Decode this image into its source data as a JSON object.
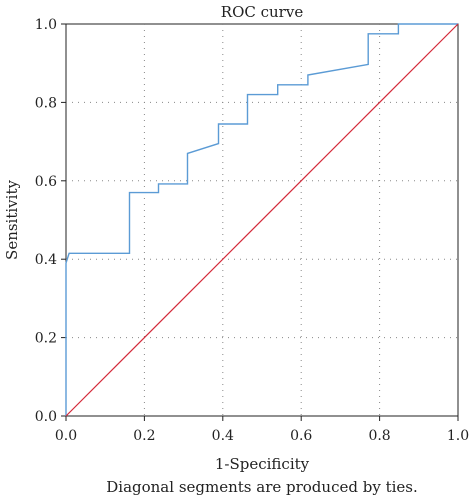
{
  "chart_data": {
    "type": "line",
    "title": "ROC curve",
    "xlabel": "1-Specificity",
    "ylabel": "Sensitivity",
    "footnote": "Diagonal segments are produced by ties.",
    "xlim": [
      0,
      1
    ],
    "ylim": [
      0,
      1
    ],
    "xticks": [
      "0.0",
      "0.2",
      "0.4",
      "0.6",
      "0.8",
      "1.0"
    ],
    "yticks": [
      "0.0",
      "0.2",
      "0.4",
      "0.6",
      "0.8",
      "1.0"
    ],
    "grid": true,
    "series": [
      {
        "color": "#5b9bd5",
        "x": [
          0.0,
          0.0,
          0.008,
          0.008,
          0.162,
          0.162,
          0.236,
          0.236,
          0.31,
          0.31,
          0.389,
          0.389,
          0.463,
          0.463,
          0.54,
          0.54,
          0.617,
          0.617,
          0.771,
          0.771,
          0.848,
          0.848,
          1.0
        ],
        "y": [
          0.0,
          0.39,
          0.415,
          0.415,
          0.415,
          0.57,
          0.57,
          0.592,
          0.592,
          0.67,
          0.695,
          0.745,
          0.745,
          0.82,
          0.82,
          0.845,
          0.845,
          0.87,
          0.897,
          0.975,
          0.975,
          1.0,
          1.0
        ]
      },
      {
        "color": "#d42a3a",
        "x": [
          0,
          1
        ],
        "y": [
          0,
          1
        ]
      }
    ]
  }
}
